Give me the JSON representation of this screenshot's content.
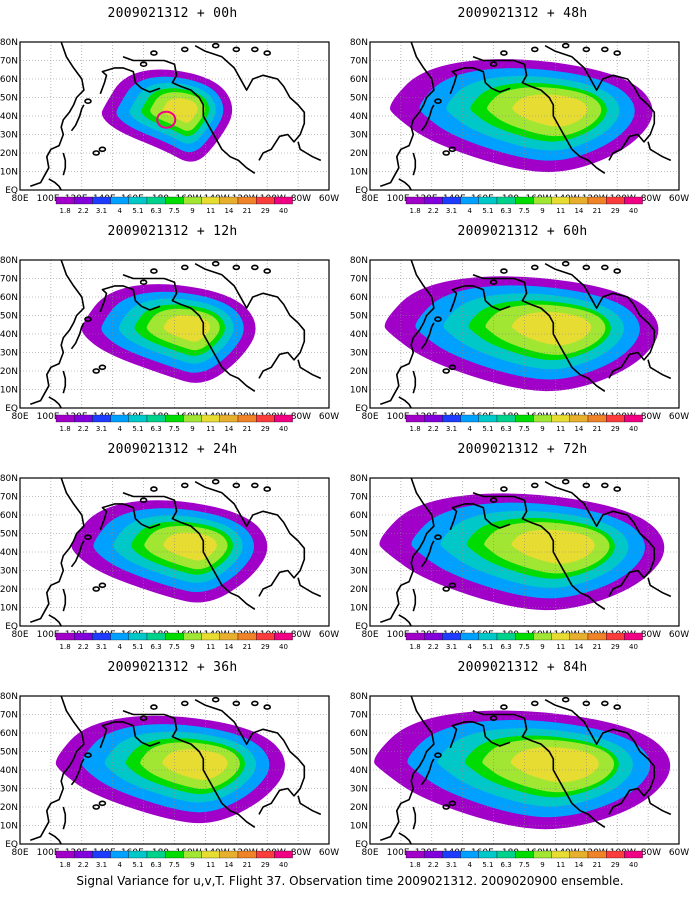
{
  "panels": [
    {
      "title": "2009021312 + 00h",
      "lead": "00h",
      "spread": 0.25,
      "intensity": 0.4
    },
    {
      "title": "2009021312 + 48h",
      "lead": "48h",
      "spread": 0.85,
      "intensity": 0.55
    },
    {
      "title": "2009021312 + 12h",
      "lead": "12h",
      "spread": 0.45,
      "intensity": 0.4
    },
    {
      "title": "2009021312 + 60h",
      "lead": "60h",
      "spread": 0.9,
      "intensity": 0.58
    },
    {
      "title": "2009021312 + 24h",
      "lead": "24h",
      "spread": 0.55,
      "intensity": 0.45
    },
    {
      "title": "2009021312 + 72h",
      "lead": "72h",
      "spread": 0.95,
      "intensity": 0.6
    },
    {
      "title": "2009021312 + 36h",
      "lead": "36h",
      "spread": 0.7,
      "intensity": 0.55
    },
    {
      "title": "2009021312 + 84h",
      "lead": "84h",
      "spread": 1.0,
      "intensity": 0.65
    }
  ],
  "axes": {
    "lon_labels": [
      "80E",
      "100E",
      "120E",
      "140E",
      "160E",
      "180",
      "160W",
      "140W",
      "120W",
      "100W",
      "80W",
      "60W"
    ],
    "lat_labels": [
      "EQ",
      "10N",
      "20N",
      "30N",
      "40N",
      "50N",
      "60N",
      "70N",
      "80N"
    ]
  },
  "colorbar": {
    "levels": [
      "1.8",
      "2.2",
      "3.1",
      "4",
      "5.1",
      "6.3",
      "7.5",
      "9",
      "11",
      "14",
      "21",
      "29",
      "40"
    ],
    "colors": [
      "#a000c8",
      "#8200dc",
      "#1e3cff",
      "#00a0ff",
      "#00c8c8",
      "#00d28c",
      "#00dc00",
      "#a0e632",
      "#e6dc32",
      "#e6af2d",
      "#f08228",
      "#fa3c3c",
      "#f00082"
    ]
  },
  "footer": "Signal Variance for u,v,T. Flight 37. Observation time 2009021312. 2009020900 ensemble."
}
